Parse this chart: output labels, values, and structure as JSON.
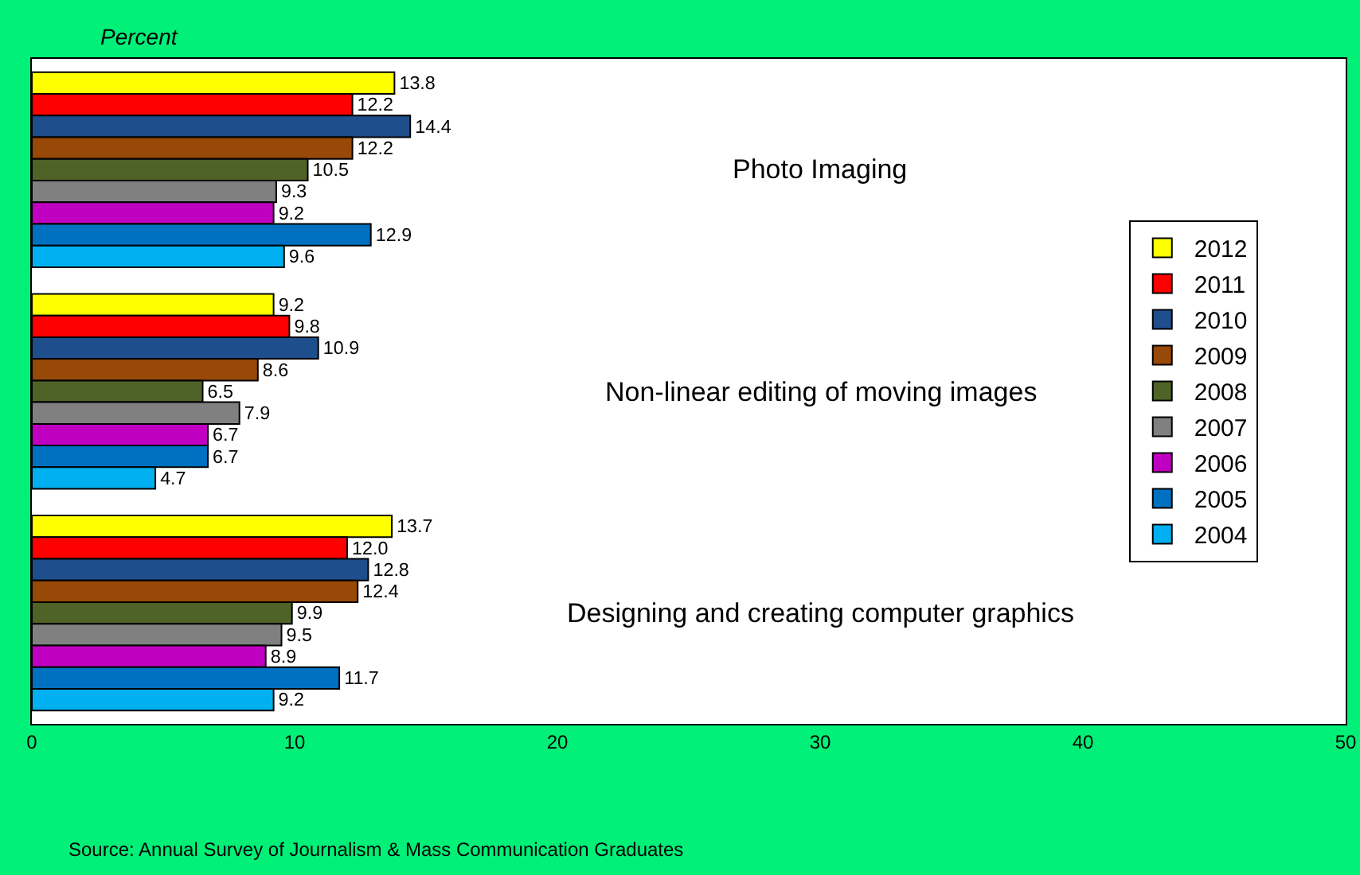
{
  "chart_data": {
    "type": "bar",
    "orientation": "horizontal",
    "xlabel": "Percent",
    "categories": [
      "Photo Imaging",
      "Non-linear editing of moving images",
      "Designing and creating computer graphics"
    ],
    "series": [
      {
        "name": "2012",
        "color": "#ffff00",
        "values": [
          13.8,
          9.2,
          13.7
        ],
        "value_labels": [
          "13.8",
          "9.2",
          "13.7"
        ]
      },
      {
        "name": "2011",
        "color": "#ff0000",
        "values": [
          12.2,
          9.8,
          12.0
        ],
        "value_labels": [
          "12.2",
          "9.8",
          "12.0"
        ]
      },
      {
        "name": "2010",
        "color": "#1f4e8c",
        "values": [
          14.4,
          10.9,
          12.8
        ],
        "value_labels": [
          "14.4",
          "10.9",
          "12.8"
        ]
      },
      {
        "name": "2009",
        "color": "#984807",
        "values": [
          12.2,
          8.6,
          12.4
        ],
        "value_labels": [
          "12.2",
          "8.6",
          "12.4"
        ]
      },
      {
        "name": "2008",
        "color": "#4f6228",
        "values": [
          10.5,
          6.5,
          9.9
        ],
        "value_labels": [
          "10.5",
          "6.5",
          "9.9"
        ]
      },
      {
        "name": "2007",
        "color": "#808080",
        "values": [
          9.3,
          7.9,
          9.5
        ],
        "value_labels": [
          "9.3",
          "7.9",
          "9.5"
        ]
      },
      {
        "name": "2006",
        "color": "#c000c0",
        "values": [
          9.2,
          6.7,
          8.9
        ],
        "value_labels": [
          "9.2",
          "6.7",
          "8.9"
        ]
      },
      {
        "name": "2005",
        "color": "#0070c0",
        "values": [
          12.9,
          6.7,
          11.7
        ],
        "value_labels": [
          "12.9",
          "6.7",
          "11.7"
        ]
      },
      {
        "name": "2004",
        "color": "#00b0f0",
        "values": [
          9.6,
          4.7,
          9.2
        ],
        "value_labels": [
          "9.6",
          "4.7",
          "9.2"
        ]
      }
    ],
    "xlim": [
      0,
      50
    ],
    "xticks": [
      0,
      10,
      20,
      30,
      40,
      50
    ],
    "grid": false,
    "legend": "right",
    "tick_labels": "x",
    "annotations": [
      "Source: Annual Survey of Journalism & Mass Communication Graduates"
    ]
  }
}
